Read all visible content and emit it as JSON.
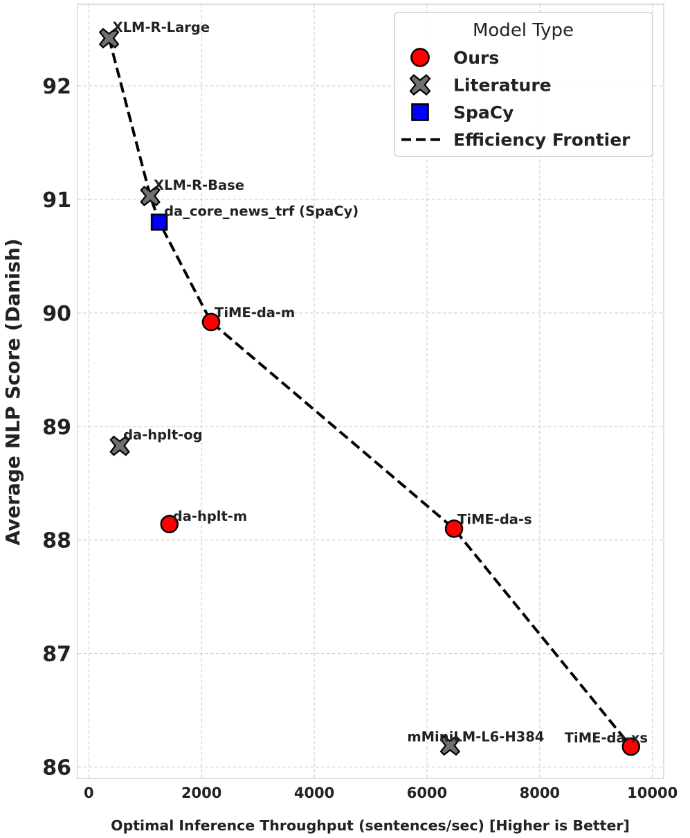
{
  "chart_data": {
    "type": "scatter",
    "xlabel": "Optimal Inference Throughput (sentences/sec) [Higher is Better]",
    "ylabel": "Average NLP Score (Danish)",
    "xlim": [
      -200,
      10200
    ],
    "ylim": [
      85.9,
      92.72
    ],
    "xticks": [
      0,
      2000,
      4000,
      6000,
      8000,
      10000
    ],
    "xtick_labels": [
      "0",
      "2000",
      "4000",
      "6000",
      "8000",
      "10000"
    ],
    "yticks": [
      86,
      87,
      88,
      89,
      90,
      91,
      92
    ],
    "ytick_labels": [
      "86",
      "87",
      "88",
      "89",
      "90",
      "91",
      "92"
    ],
    "grid": true,
    "legend": {
      "title": "Model Type",
      "position": "top-right",
      "entries": [
        {
          "label": "Ours",
          "marker": "circle"
        },
        {
          "label": "Literature",
          "marker": "x"
        },
        {
          "label": "SpaCy",
          "marker": "square"
        },
        {
          "label": "Efficiency Frontier",
          "marker": "dashed-line"
        }
      ]
    },
    "colors": {
      "ours": "#ff0000",
      "literature": "#707070",
      "spacy": "#0000ff",
      "frontier": "#000000"
    },
    "points": [
      {
        "name": "XLM-R-Large",
        "x": 360,
        "y": 92.42,
        "group": "Literature"
      },
      {
        "name": "XLM-R-Base",
        "x": 1090,
        "y": 91.03,
        "group": "Literature"
      },
      {
        "name": "da_core_news_trf (SpaCy)",
        "x": 1250,
        "y": 90.8,
        "group": "SpaCy"
      },
      {
        "name": "TiME-da-m",
        "x": 2170,
        "y": 89.92,
        "group": "Ours"
      },
      {
        "name": "da-hplt-og",
        "x": 550,
        "y": 88.83,
        "group": "Literature"
      },
      {
        "name": "da-hplt-m",
        "x": 1430,
        "y": 88.14,
        "group": "Ours"
      },
      {
        "name": "TiME-da-s",
        "x": 6480,
        "y": 88.1,
        "group": "Ours"
      },
      {
        "name": "mMiniLM-L6-H384",
        "x": 6410,
        "y": 86.19,
        "group": "Literature"
      },
      {
        "name": "TiME-da-xs",
        "x": 9620,
        "y": 86.18,
        "group": "Ours"
      }
    ],
    "frontier": [
      {
        "x": 360,
        "y": 92.42
      },
      {
        "x": 1090,
        "y": 91.03
      },
      {
        "x": 1250,
        "y": 90.8
      },
      {
        "x": 2170,
        "y": 89.92
      },
      {
        "x": 6480,
        "y": 88.1
      },
      {
        "x": 9620,
        "y": 86.18
      }
    ]
  }
}
